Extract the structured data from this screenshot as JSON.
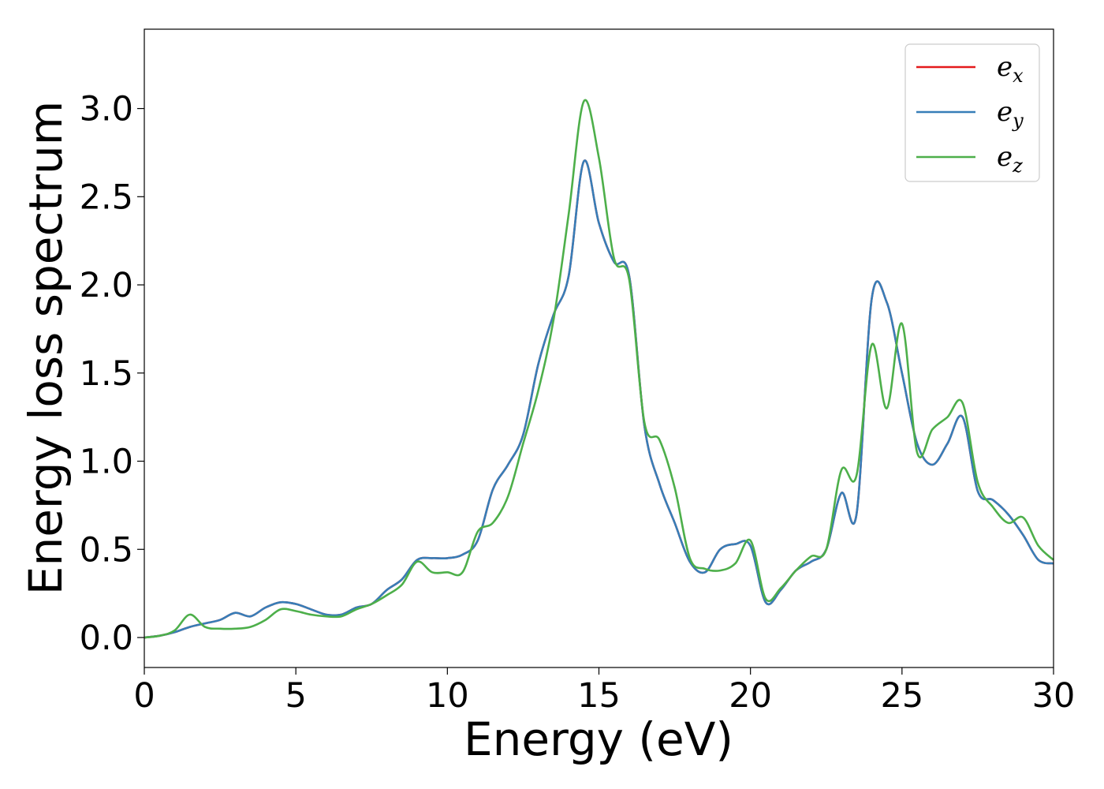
{
  "chart_data": {
    "type": "line",
    "title": "",
    "xlabel": "Energy (eV)",
    "ylabel": "Energy loss spectrum",
    "xlim": [
      0,
      30
    ],
    "ylim": [
      -0.17,
      3.45
    ],
    "xticks": [
      0,
      5,
      10,
      15,
      20,
      25,
      30
    ],
    "xtick_labels": [
      "0",
      "5",
      "10",
      "15",
      "20",
      "25",
      "30"
    ],
    "yticks": [
      0.0,
      0.5,
      1.0,
      1.5,
      2.0,
      2.5,
      3.0
    ],
    "ytick_labels": [
      "0.0",
      "0.5",
      "1.0",
      "1.5",
      "2.0",
      "2.5",
      "3.0"
    ],
    "grid": false,
    "legend_position": "top-right",
    "series": [
      {
        "name": "e",
        "subscript": "x",
        "color": "#e41a1c",
        "x": [
          0,
          0.5,
          1,
          1.5,
          2,
          2.5,
          3,
          3.5,
          4,
          4.5,
          5,
          5.5,
          6,
          6.5,
          7,
          7.5,
          8,
          8.5,
          9,
          9.5,
          10,
          10.5,
          11,
          11.5,
          12,
          12.5,
          13,
          13.5,
          14,
          14.5,
          15,
          15.5,
          16,
          16.5,
          17,
          17.5,
          18,
          18.5,
          19,
          19.5,
          20,
          20.5,
          21,
          21.5,
          22,
          22.5,
          23,
          23.5,
          24,
          24.5,
          25,
          25.5,
          26,
          26.5,
          27,
          27.5,
          28,
          28.5,
          29,
          29.5,
          30
        ],
        "values": [
          0.0,
          0.01,
          0.03,
          0.06,
          0.08,
          0.1,
          0.14,
          0.12,
          0.17,
          0.2,
          0.19,
          0.16,
          0.13,
          0.13,
          0.17,
          0.19,
          0.27,
          0.33,
          0.44,
          0.45,
          0.45,
          0.47,
          0.55,
          0.84,
          0.98,
          1.15,
          1.55,
          1.83,
          2.05,
          2.7,
          2.35,
          2.13,
          2.05,
          1.2,
          0.87,
          0.65,
          0.43,
          0.37,
          0.5,
          0.53,
          0.52,
          0.2,
          0.27,
          0.38,
          0.43,
          0.5,
          0.82,
          0.7,
          1.92,
          1.9,
          1.5,
          1.1,
          0.98,
          1.1,
          1.25,
          0.83,
          0.78,
          0.7,
          0.58,
          0.44,
          0.42
        ]
      },
      {
        "name": "e",
        "subscript": "y",
        "color": "#377eb8",
        "x": [
          0,
          0.5,
          1,
          1.5,
          2,
          2.5,
          3,
          3.5,
          4,
          4.5,
          5,
          5.5,
          6,
          6.5,
          7,
          7.5,
          8,
          8.5,
          9,
          9.5,
          10,
          10.5,
          11,
          11.5,
          12,
          12.5,
          13,
          13.5,
          14,
          14.5,
          15,
          15.5,
          16,
          16.5,
          17,
          17.5,
          18,
          18.5,
          19,
          19.5,
          20,
          20.5,
          21,
          21.5,
          22,
          22.5,
          23,
          23.5,
          24,
          24.5,
          25,
          25.5,
          26,
          26.5,
          27,
          27.5,
          28,
          28.5,
          29,
          29.5,
          30
        ],
        "values": [
          0.0,
          0.01,
          0.03,
          0.06,
          0.08,
          0.1,
          0.14,
          0.12,
          0.17,
          0.2,
          0.19,
          0.16,
          0.13,
          0.13,
          0.17,
          0.19,
          0.27,
          0.33,
          0.44,
          0.45,
          0.45,
          0.47,
          0.55,
          0.84,
          0.98,
          1.15,
          1.55,
          1.83,
          2.05,
          2.7,
          2.35,
          2.13,
          2.05,
          1.2,
          0.87,
          0.65,
          0.43,
          0.37,
          0.5,
          0.53,
          0.52,
          0.2,
          0.27,
          0.38,
          0.43,
          0.5,
          0.82,
          0.7,
          1.92,
          1.9,
          1.5,
          1.1,
          0.98,
          1.1,
          1.25,
          0.83,
          0.78,
          0.7,
          0.58,
          0.44,
          0.42
        ]
      },
      {
        "name": "e",
        "subscript": "z",
        "color": "#4daf4a",
        "x": [
          0,
          0.5,
          1,
          1.5,
          2,
          2.5,
          3,
          3.5,
          4,
          4.5,
          5,
          5.5,
          6,
          6.5,
          7,
          7.5,
          8,
          8.5,
          9,
          9.5,
          10,
          10.5,
          11,
          11.5,
          12,
          12.5,
          13,
          13.5,
          14,
          14.5,
          15,
          15.5,
          16,
          16.5,
          17,
          17.5,
          18,
          18.5,
          19,
          19.5,
          20,
          20.5,
          21,
          21.5,
          22,
          22.5,
          23,
          23.5,
          24,
          24.5,
          25,
          25.5,
          26,
          26.5,
          27,
          27.5,
          28,
          28.5,
          29,
          29.5,
          30
        ],
        "values": [
          0.0,
          0.01,
          0.04,
          0.13,
          0.06,
          0.05,
          0.05,
          0.06,
          0.1,
          0.16,
          0.15,
          0.13,
          0.12,
          0.12,
          0.16,
          0.19,
          0.24,
          0.3,
          0.43,
          0.37,
          0.37,
          0.37,
          0.6,
          0.65,
          0.8,
          1.1,
          1.4,
          1.8,
          2.4,
          3.04,
          2.72,
          2.15,
          2.03,
          1.22,
          1.12,
          0.85,
          0.45,
          0.39,
          0.38,
          0.42,
          0.55,
          0.22,
          0.28,
          0.38,
          0.46,
          0.5,
          0.95,
          0.92,
          1.66,
          1.3,
          1.78,
          1.05,
          1.18,
          1.25,
          1.33,
          0.88,
          0.74,
          0.65,
          0.68,
          0.52,
          0.44
        ]
      }
    ]
  }
}
